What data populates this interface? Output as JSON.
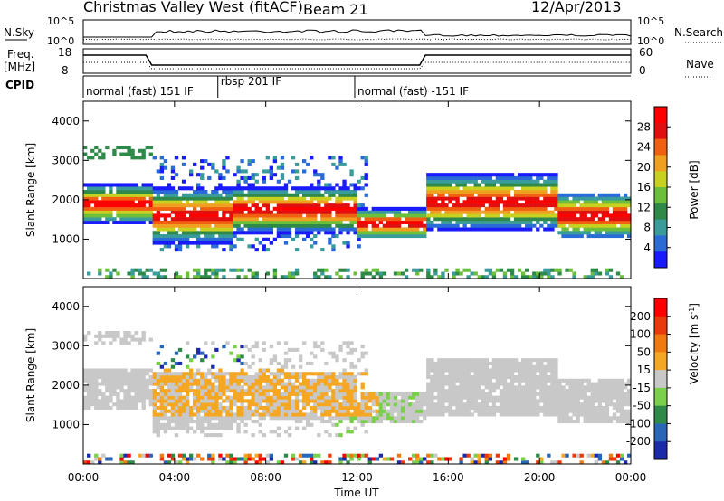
{
  "header": {
    "title": "Christmas Valley West (fitACF)",
    "beam": "Beam 21",
    "date": "12/Apr/2013"
  },
  "top_panels": {
    "nsky_label": "N.Sky",
    "nsearch_label": "N.Search",
    "nsky_ticks": [
      "10^5",
      "10^0"
    ],
    "nsearch_ticks": [
      "10^5",
      "10^0"
    ],
    "freq_label_1": "Freq.",
    "freq_label_2": "[MHz]",
    "freq_ticks": [
      "18",
      "8"
    ],
    "nave_label": "Nave",
    "nave_ticks": [
      "60",
      "0"
    ],
    "cpid_label": "CPID",
    "cpid_segments": [
      {
        "label": "normal (fast) 151 IF",
        "start": 0.0,
        "end": 5.9
      },
      {
        "label": "rbsp 201 IF",
        "start": 5.9,
        "end": 11.9
      },
      {
        "label": "normal (fast) -151 IF",
        "start": 11.9,
        "end": 24.0
      }
    ]
  },
  "chart_data": [
    {
      "type": "heatmap",
      "name": "power",
      "xlabel": "Time UT",
      "ylabel": "Slant Range [km]",
      "xlim": [
        0,
        24
      ],
      "ylim": [
        0,
        4500
      ],
      "yticks": [
        "1000",
        "2000",
        "3000",
        "4000"
      ],
      "colorbar_label": "Power [dB]",
      "colorbar_ticks": [
        "4",
        "8",
        "12",
        "16",
        "20",
        "24",
        "28"
      ],
      "colorbar_range": [
        0,
        32
      ],
      "bands": [
        {
          "start": 0.0,
          "end": 3.0,
          "center": 1900,
          "width": 500
        },
        {
          "start": 3.0,
          "end": 6.5,
          "center": 1600,
          "width": 700
        },
        {
          "start": 6.5,
          "end": 12.0,
          "center": 1750,
          "width": 600
        },
        {
          "start": 12.0,
          "end": 15.0,
          "center": 1400,
          "width": 400
        },
        {
          "start": 15.0,
          "end": 20.8,
          "center": 1950,
          "width": 700
        },
        {
          "start": 20.8,
          "end": 24.0,
          "center": 1600,
          "width": 600
        }
      ]
    },
    {
      "type": "heatmap",
      "name": "velocity",
      "xlabel": "Time UT",
      "ylabel": "Slant Range [km]",
      "xlim": [
        0,
        24
      ],
      "ylim": [
        0,
        4500
      ],
      "yticks": [
        "1000",
        "2000",
        "3000",
        "4000"
      ],
      "colorbar_label": "Velocity [m s^-1]",
      "colorbar_ticks": [
        "200",
        "100",
        "50",
        "15",
        "-15",
        "-50",
        "-100",
        "-200"
      ],
      "colorbar_range": [
        -250,
        250
      ]
    }
  ],
  "x_axis": {
    "label": "Time UT",
    "ticks": [
      "00:00",
      "04:00",
      "08:00",
      "12:00",
      "16:00",
      "20:00",
      "00:00"
    ]
  },
  "colors": {
    "power_scale": [
      "#1a1aff",
      "#2b6bd6",
      "#3a9b9b",
      "#2f8a4a",
      "#6cbf3a",
      "#c8d020",
      "#f0a020",
      "#f06010",
      "#e01010",
      "#ff0000"
    ],
    "velocity_scale": [
      "#1a2aa8",
      "#2a66b8",
      "#2f8a4a",
      "#7ad04a",
      "#c8c8c8",
      "#f5a623",
      "#f07a10",
      "#e83a0a",
      "#ff0000"
    ]
  }
}
